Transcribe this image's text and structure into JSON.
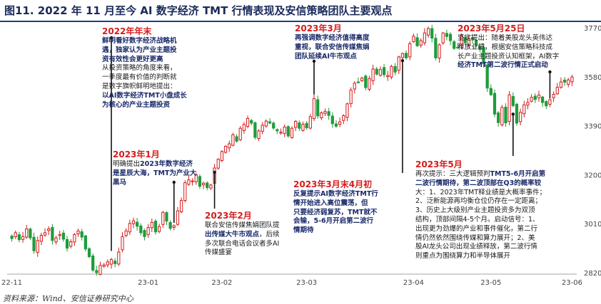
{
  "title": "图11. 2022 年 11 月至今 AI 数字经济 TMT 行情表现及安信策略团队主要观点",
  "source": "资料来源：Wind、安信证券研究中心",
  "colors": {
    "up": "#d51c1c",
    "down": "#1e9c3a",
    "title": "#1a2a5a",
    "annotation_title": "#d51c1c",
    "marker": "#111111"
  },
  "chart_data": {
    "type": "candlestick",
    "title": "图11. 2022 年 11 月至今 AI 数字经济 TMT 行情表现及安信策略团队主要观点",
    "xlabel": "",
    "ylabel": "",
    "ylim": [
      2820,
      3770
    ],
    "yticks": [
      2820,
      3010,
      3200,
      3390,
      3580,
      3770
    ],
    "xticks": [
      {
        "label": "22-11",
        "index": 0
      },
      {
        "label": "23-01",
        "index": 37
      },
      {
        "label": "23-02",
        "index": 57
      },
      {
        "label": "23-03",
        "index": 80
      },
      {
        "label": "23-04",
        "index": 109
      },
      {
        "label": "23-05",
        "index": 130
      },
      {
        "label": "23-06",
        "index": 152
      }
    ],
    "grid": false,
    "closes": [
      2952,
      2975,
      2948,
      2960,
      2990,
      2955,
      2905,
      2945,
      2965,
      2975,
      2990,
      2945,
      2955,
      2968,
      2950,
      2915,
      2940,
      2968,
      2982,
      2958,
      2912,
      2882,
      2830,
      2820,
      2848,
      2850,
      2862,
      2871,
      2855,
      2900,
      2960,
      2982,
      3011,
      3021,
      3000,
      2975,
      2960,
      2995,
      3015,
      2978,
      2999,
      3054,
      3020,
      2992,
      3002,
      3060,
      3100,
      3169,
      3180,
      3176,
      3200,
      3155,
      3167,
      3150,
      3160,
      3226,
      3260,
      3290,
      3310,
      3320,
      3355,
      3330,
      3380,
      3395,
      3418,
      3400,
      3345,
      3370,
      3392,
      3408,
      3400,
      3381,
      3370,
      3365,
      3385,
      3350,
      3380,
      3407,
      3380,
      3395,
      3382,
      3425,
      3495,
      3428,
      3440,
      3445,
      3430,
      3398,
      3388,
      3405,
      3429,
      3475,
      3528,
      3555,
      3560,
      3575,
      3538,
      3573,
      3610,
      3590,
      3608,
      3588,
      3585,
      3620,
      3598,
      3657,
      3670,
      3653,
      3708,
      3737,
      3700,
      3720,
      3750,
      3767,
      3730,
      3653,
      3704,
      3750,
      3736,
      3720,
      3690,
      3693,
      3740,
      3712,
      3727,
      3725,
      3702,
      3686,
      3630,
      3536,
      3510,
      3435,
      3402,
      3461,
      3401,
      3510,
      3468,
      3400,
      3442,
      3471,
      3480,
      3500,
      3492,
      3509,
      3480,
      3467,
      3491,
      3512,
      3539,
      3560,
      3559,
      3568,
      3579
    ],
    "annotations": [
      {
        "date": "2022年年末",
        "index": 27,
        "lines": [
          {
            "text": "鲜明看好数字经济战略机",
            "bold": true
          },
          {
            "text": "遇，独家认为产业主题投",
            "bold": true
          },
          {
            "text": "资有效性会更好更高",
            "bold": true
          },
          {
            "text": "从投资策略的角度来看，",
            "bold": false
          },
          {
            "text": "一季度最有价值的判断就",
            "bold": false
          },
          {
            "text": "是数字旗帜鲜明地提出：",
            "bold": false
          },
          {
            "text": "以AI数字经济TMT小盘成长",
            "bold": true
          },
          {
            "text": "为核心的产业主题投资",
            "bold": true
          }
        ]
      },
      {
        "date": "2023年1月",
        "index": 44,
        "lines": [
          {
            "text": "明确提出",
            "bold": false
          },
          {
            "text": "2023年数字经济",
            "bold": true
          },
          {
            "text": "是星辰大海，TMT为产业大",
            "bold": true
          },
          {
            "text": "黑马",
            "bold": true
          }
        ]
      },
      {
        "date": "2023年2月",
        "index": 55,
        "lines": [
          {
            "text": "联合安信传媒焦娟团队提",
            "bold": false
          },
          {
            "text": "出传媒大牛市观点",
            "bold": true
          },
          {
            "text": "，后续",
            "bold": false
          },
          {
            "text": "多次联合电话会议者多AI",
            "bold": false
          },
          {
            "text": "传媒盛宴",
            "bold": false
          }
        ]
      },
      {
        "date": "2023年3月",
        "index": 82,
        "lines": [
          {
            "text": "再强调数字经济值得高度",
            "bold": true
          },
          {
            "text": "重视，联合安信传媒焦娟",
            "bold": true
          },
          {
            "text": "团队延续AI牛市观点",
            "bold": true
          }
        ]
      },
      {
        "date": "2023年3月末4月初",
        "index": 106,
        "lines": [
          {
            "text": "反复提示AI数字经济TMT行",
            "bold": true
          },
          {
            "text": "情开始进入高位震荡，但",
            "bold": true
          },
          {
            "text": "只要经济弱复苏，TMT就不",
            "bold": true
          },
          {
            "text": "会输，5-6月开启第二波行",
            "bold": true
          },
          {
            "text": "情期待",
            "bold": true
          }
        ]
      },
      {
        "date": "2023年5月",
        "index": 136,
        "lines": [
          {
            "text": "再次提示：三大逻辑预判",
            "bold": false
          },
          {
            "text": "TMT5-6月开启第",
            "bold": true
          },
          {
            "text": "二波行情期待，第二波顶部在Q3的概率较",
            "bold": true
          },
          {
            "text": "大：1、2023年TMT释业绩是大概率事件；",
            "bold": false
          },
          {
            "text": "2、泛新能源再均衡仓位仍存在一定距离；",
            "bold": false
          },
          {
            "text": "3、历史上大级别产业主题投资多为双顶",
            "bold": false
          },
          {
            "text": "结构，顶部间隔4-5个月。启动信号：1、",
            "bold": false
          },
          {
            "text": "出现更为劲爆的产业和事件催化，第二行",
            "bold": false
          },
          {
            "text": "情仍然依然围绕传媒和算力展开；2、美",
            "bold": false
          },
          {
            "text": "股AI龙头公司出现业绩释放，第二波行情",
            "bold": false
          },
          {
            "text": "则重点为围绕算力和半导体展开",
            "bold": false
          }
        ]
      },
      {
        "date": "2023年5月25日",
        "index": 146,
        "lines": [
          {
            "text": "坚定提出：随着美股龙头英伟达",
            "bold": false
          },
          {
            "text": "释放业绩，根据安信策略科技成",
            "bold": false
          },
          {
            "text": "长产业主题投资认知框架，AI数字",
            "bold": false
          },
          {
            "text": "经济TMT第二波行情正式启动",
            "bold": true
          }
        ]
      }
    ]
  }
}
